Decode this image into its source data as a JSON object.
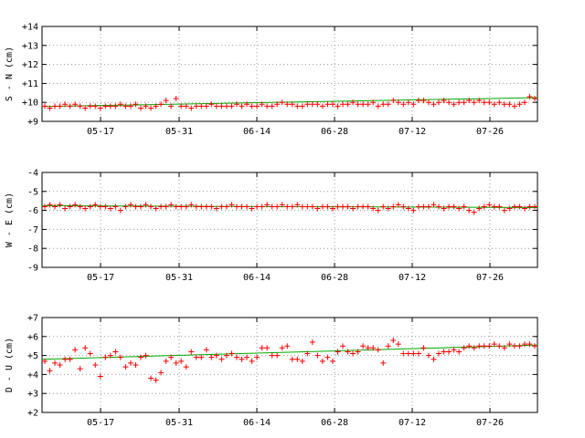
{
  "chart_data": [
    {
      "type": "scatter",
      "ylabel": "S - N (cm)",
      "ylim": [
        9,
        14
      ],
      "yticks": [
        "+9",
        "+10",
        "+11",
        "+12",
        "+13",
        "+14"
      ],
      "xtick_labels": [
        "05-17",
        "05-31",
        "06-14",
        "06-28",
        "07-12",
        "07-26"
      ],
      "grid": true,
      "points": [
        9.8,
        9.7,
        9.8,
        9.8,
        9.9,
        9.8,
        9.9,
        9.8,
        9.7,
        9.8,
        9.8,
        9.7,
        9.8,
        9.8,
        9.8,
        9.9,
        9.8,
        9.8,
        9.9,
        9.7,
        9.8,
        9.7,
        9.8,
        9.9,
        10.1,
        9.8,
        10.2,
        9.8,
        9.8,
        9.7,
        9.8,
        9.8,
        9.8,
        9.9,
        9.8,
        9.8,
        9.8,
        9.8,
        9.9,
        9.8,
        9.9,
        9.8,
        9.8,
        9.9,
        9.8,
        9.8,
        9.9,
        10.0,
        9.9,
        9.9,
        9.8,
        9.8,
        9.9,
        9.9,
        9.9,
        9.8,
        9.9,
        9.9,
        9.8,
        9.9,
        9.9,
        10.0,
        9.9,
        9.9,
        9.9,
        10.0,
        9.8,
        9.9,
        9.9,
        10.1,
        10.0,
        9.9,
        10.0,
        9.9,
        10.1,
        10.1,
        10.0,
        9.9,
        10.0,
        10.1,
        10.0,
        9.9,
        10.0,
        10.0,
        10.1,
        10.0,
        10.1,
        10.0,
        10.0,
        9.9,
        10.0,
        9.9,
        9.9,
        9.8,
        9.9,
        10.0,
        10.3,
        10.2
      ],
      "trend": [
        9.78,
        10.25
      ]
    },
    {
      "type": "scatter",
      "ylabel": "W - E (cm)",
      "ylim": [
        -9,
        -4
      ],
      "yticks": [
        "-9",
        "-8",
        "-7",
        "-6",
        "-5",
        "-4"
      ],
      "xtick_labels": [
        "05-17",
        "05-31",
        "06-14",
        "06-28",
        "07-12",
        "07-26"
      ],
      "grid": true,
      "points": [
        -5.8,
        -5.7,
        -5.8,
        -5.7,
        -5.9,
        -5.8,
        -5.7,
        -5.8,
        -5.9,
        -5.8,
        -5.7,
        -5.8,
        -5.8,
        -5.9,
        -5.8,
        -6.0,
        -5.8,
        -5.7,
        -5.8,
        -5.8,
        -5.7,
        -5.8,
        -5.9,
        -5.8,
        -5.8,
        -5.7,
        -5.8,
        -5.8,
        -5.8,
        -5.7,
        -5.8,
        -5.8,
        -5.8,
        -5.8,
        -5.9,
        -5.8,
        -5.8,
        -5.7,
        -5.8,
        -5.8,
        -5.8,
        -5.9,
        -5.8,
        -5.8,
        -5.7,
        -5.8,
        -5.8,
        -5.7,
        -5.8,
        -5.8,
        -5.7,
        -5.8,
        -5.8,
        -5.8,
        -5.9,
        -5.8,
        -5.8,
        -5.9,
        -5.8,
        -5.8,
        -5.8,
        -5.9,
        -5.8,
        -5.8,
        -5.8,
        -5.9,
        -6.0,
        -5.8,
        -5.9,
        -5.8,
        -5.7,
        -5.8,
        -5.9,
        -6.0,
        -5.8,
        -5.8,
        -5.8,
        -5.7,
        -5.8,
        -5.9,
        -5.8,
        -5.8,
        -5.9,
        -5.8,
        -6.0,
        -6.1,
        -5.9,
        -5.8,
        -5.7,
        -5.8,
        -5.8,
        -6.0,
        -5.9,
        -5.8,
        -5.8,
        -5.9,
        -5.8,
        -5.8
      ],
      "trend": [
        -5.75,
        -5.85
      ]
    },
    {
      "type": "scatter",
      "ylabel": "D - U (cm)",
      "ylim": [
        2,
        7
      ],
      "yticks": [
        "+2",
        "+3",
        "+4",
        "+5",
        "+6",
        "+7"
      ],
      "xtick_labels": [
        "05-17",
        "05-31",
        "06-14",
        "06-28",
        "07-12",
        "07-26"
      ],
      "grid": true,
      "points": [
        4.7,
        4.2,
        4.6,
        4.5,
        4.8,
        4.8,
        5.3,
        4.3,
        5.4,
        5.1,
        4.5,
        3.9,
        4.9,
        5.0,
        5.2,
        4.9,
        4.4,
        4.6,
        4.5,
        4.9,
        5.0,
        3.8,
        3.7,
        4.1,
        4.7,
        4.9,
        4.6,
        4.7,
        4.4,
        5.2,
        4.9,
        4.9,
        5.3,
        4.9,
        5.0,
        4.8,
        5.0,
        5.1,
        4.9,
        4.8,
        4.9,
        4.7,
        4.9,
        5.4,
        5.4,
        5.0,
        5.0,
        5.4,
        5.5,
        4.8,
        4.8,
        4.7,
        5.1,
        5.7,
        5.0,
        4.7,
        4.9,
        4.7,
        5.2,
        5.5,
        5.2,
        5.1,
        5.2,
        5.5,
        5.4,
        5.4,
        5.3,
        4.6,
        5.5,
        5.8,
        5.6,
        5.1,
        5.1,
        5.1,
        5.1,
        5.4,
        5.0,
        4.8,
        5.1,
        5.2,
        5.2,
        5.3,
        5.2,
        5.4,
        5.5,
        5.4,
        5.5,
        5.5,
        5.5,
        5.6,
        5.5,
        5.4,
        5.6,
        5.5,
        5.5,
        5.6,
        5.6,
        5.5
      ],
      "trend": [
        4.8,
        5.55
      ]
    }
  ]
}
